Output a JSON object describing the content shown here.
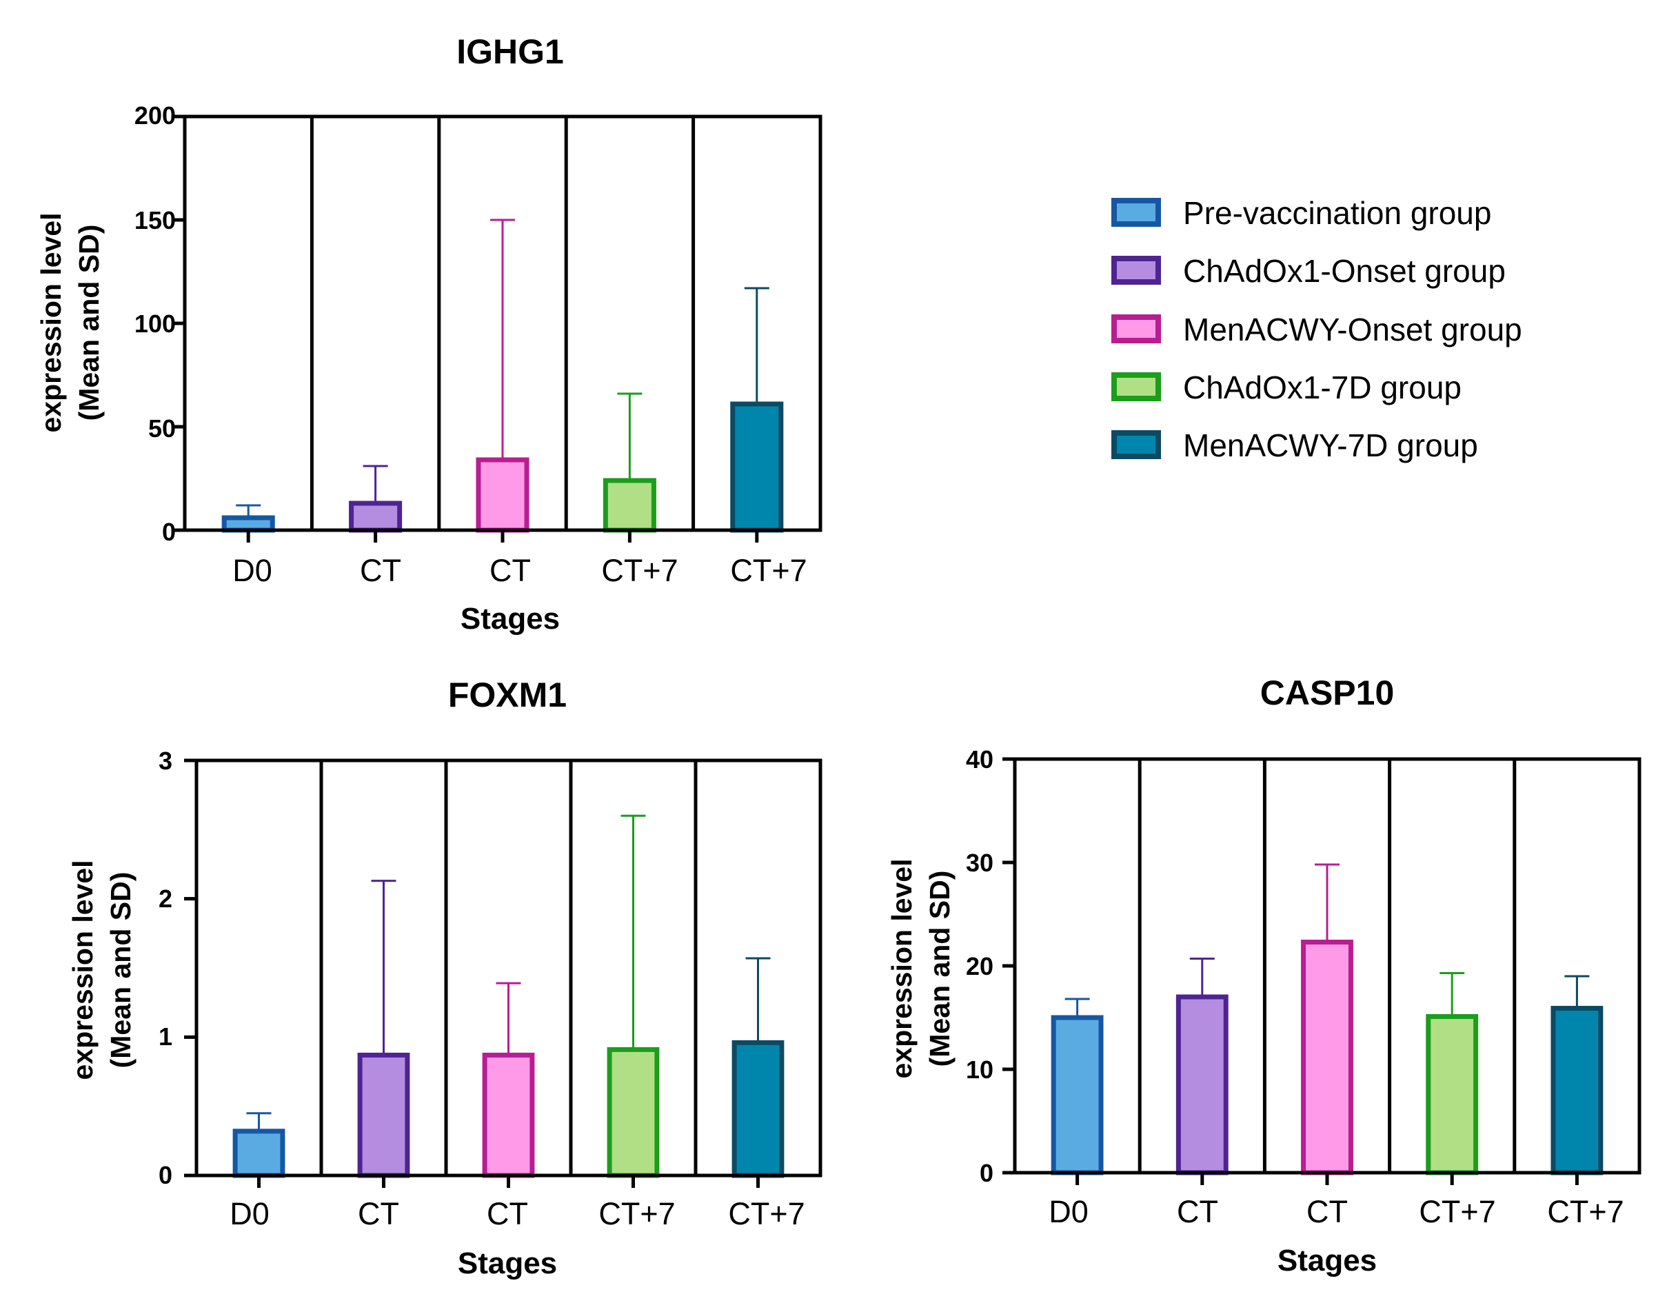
{
  "legend": {
    "entries": [
      {
        "label": "Pre-vaccination group",
        "fill": "#5aabe2",
        "stroke": "#1657a3"
      },
      {
        "label": "ChAdOx1-Onset group",
        "fill": "#b58de0",
        "stroke": "#4e2493"
      },
      {
        "label": "MenACWY-Onset group",
        "fill": "#ff9ae9",
        "stroke": "#b81d92"
      },
      {
        "label": "ChAdOx1-7D group",
        "fill": "#b0df86",
        "stroke": "#1b9e1b"
      },
      {
        "label": "MenACWY-7D group",
        "fill": "#0086ad",
        "stroke": "#0c4a63"
      }
    ]
  },
  "chart_data": [
    {
      "type": "bar",
      "title": "IGHG1",
      "xlabel": "Stages",
      "ylabel_line1": "expression  level",
      "ylabel_line2": "(Mean and SD)",
      "categories": [
        "D0",
        "CT",
        "CT",
        "CT+7",
        "CT+7"
      ],
      "values": [
        6,
        13,
        34,
        24,
        61
      ],
      "errors": [
        6,
        18,
        116,
        42,
        56
      ],
      "ylim": [
        0,
        200
      ],
      "yticks": [
        "0",
        "50",
        "100",
        "150",
        "200"
      ]
    },
    {
      "type": "bar",
      "title": "FOXM1",
      "xlabel": "Stages",
      "ylabel_line1": "expression  level",
      "ylabel_line2": "(Mean and SD)",
      "categories": [
        "D0",
        "CT",
        "CT",
        "CT+7",
        "CT+7"
      ],
      "values": [
        0.32,
        0.87,
        0.87,
        0.91,
        0.96
      ],
      "errors": [
        0.13,
        1.26,
        0.52,
        1.69,
        0.61
      ],
      "ylim": [
        0,
        3
      ],
      "yticks": [
        "0",
        "1",
        "2",
        "3"
      ]
    },
    {
      "type": "bar",
      "title": "CASP10",
      "xlabel": "Stages",
      "ylabel_line1": "expression  level",
      "ylabel_line2": "(Mean and SD)",
      "categories": [
        "D0",
        "CT",
        "CT",
        "CT+7",
        "CT+7"
      ],
      "values": [
        15,
        17,
        22.3,
        15.1,
        15.9
      ],
      "errors": [
        1.8,
        3.7,
        7.5,
        4.2,
        3.1
      ],
      "ylim": [
        0,
        40
      ],
      "yticks": [
        "0",
        "10",
        "20",
        "30",
        "40"
      ]
    }
  ]
}
